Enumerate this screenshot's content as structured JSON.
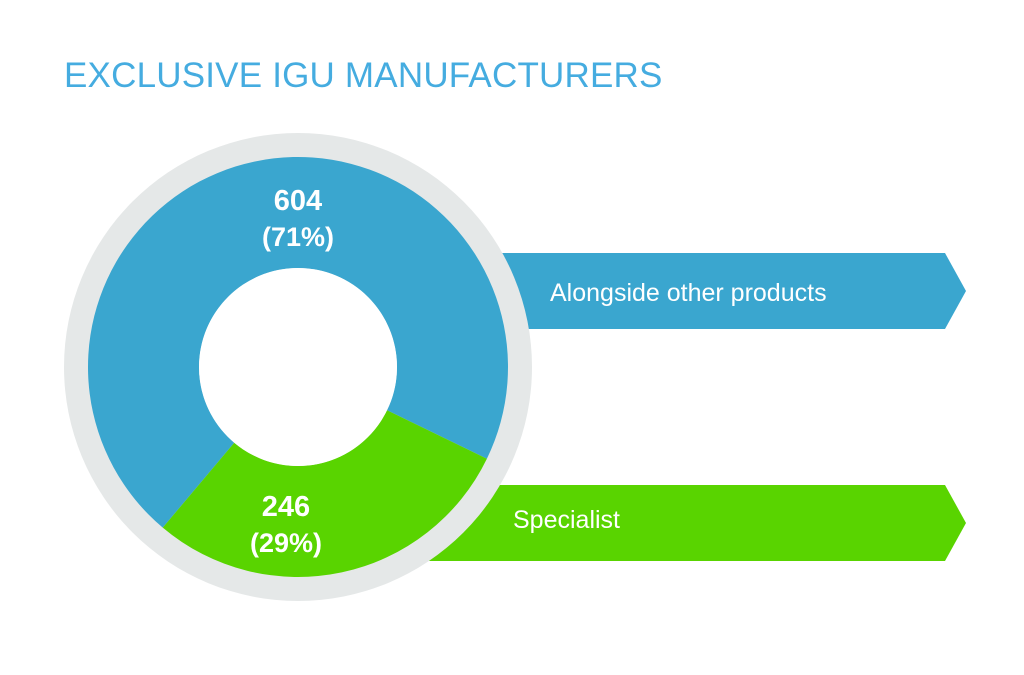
{
  "chart_data": {
    "type": "pie",
    "title": "EXCLUSIVE IGU MANUFACTURERS",
    "slices": [
      {
        "name": "Alongside other products",
        "value": 604,
        "percent": 71,
        "value_label": "604",
        "percent_label": "(71%)",
        "color": "#3aa6cf"
      },
      {
        "name": "Specialist",
        "value": 246,
        "percent": 29,
        "value_label": "246",
        "percent_label": "(29%)",
        "color": "#59d400"
      }
    ],
    "legend_placement": "right",
    "ring_color": "#e5e8e8",
    "title_color": "#45ace0"
  }
}
